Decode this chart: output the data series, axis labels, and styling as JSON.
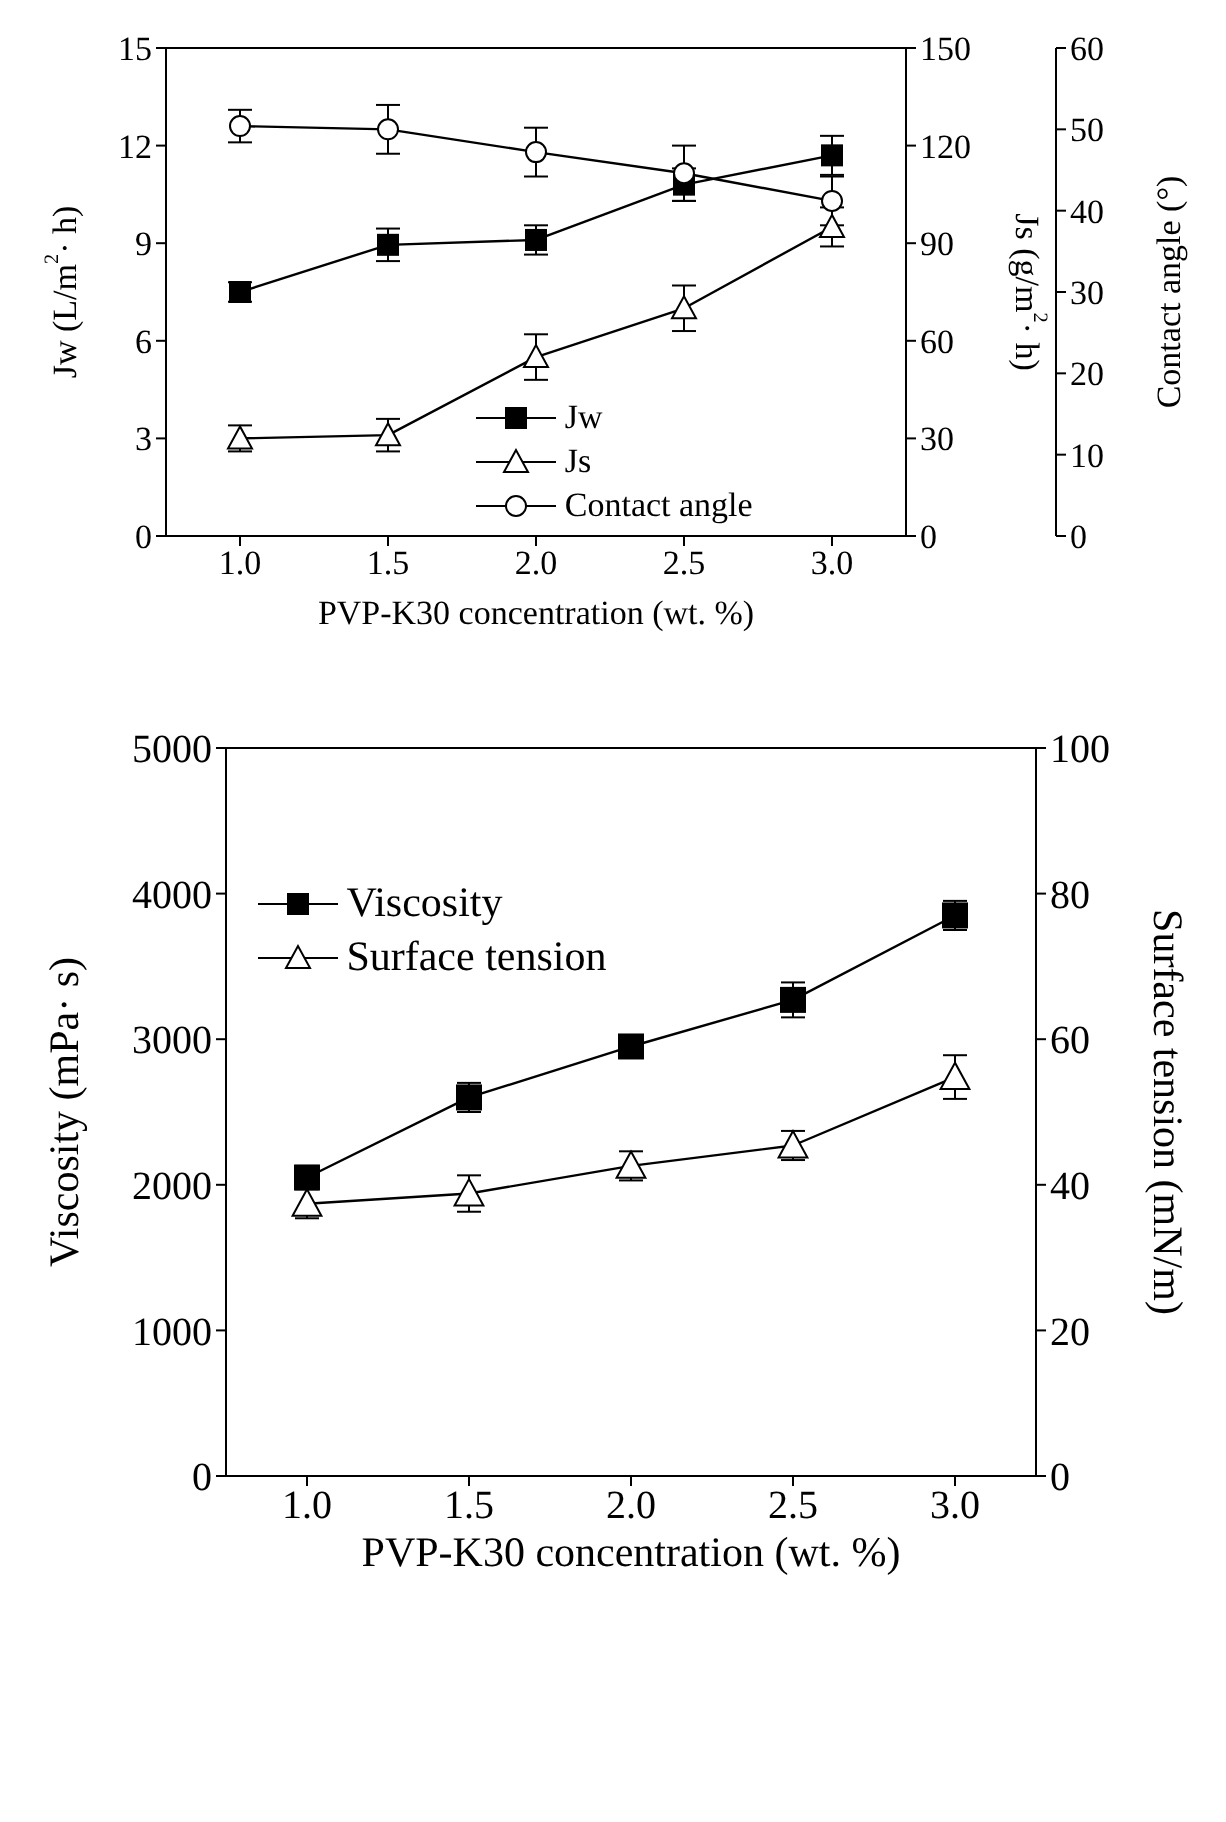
{
  "chart_data": [
    {
      "type": "line",
      "xlabel": "PVP-K30 concentration (wt. %)",
      "ylabel": "Jw (L/m$^{2}$· h)",
      "y2label": "Js (g/m$^{2}$· h)",
      "y3label": "Contact angle (°)",
      "x": [
        1.0,
        1.5,
        2.0,
        2.5,
        3.0
      ],
      "xlim": [
        0.75,
        3.25
      ],
      "xticks": [
        {
          "value": 1,
          "label": "1.0"
        },
        {
          "value": 1.5,
          "label": "1.5"
        },
        {
          "value": 2,
          "label": "2.0"
        },
        {
          "value": 2.5,
          "label": "2.5"
        },
        {
          "value": 3,
          "label": "3.0"
        }
      ],
      "ylim": [
        0,
        15
      ],
      "yticks": [
        0,
        3,
        6,
        9,
        12,
        15
      ],
      "y2lim": [
        0,
        150
      ],
      "y2ticks": [
        0,
        30,
        60,
        90,
        120,
        150
      ],
      "y3lim": [
        0,
        60
      ],
      "y3ticks": [
        0,
        10,
        20,
        30,
        40,
        50,
        60
      ],
      "legend": "bottom",
      "grid": false,
      "line_style": "solid",
      "series": [
        {
          "name": "Jw",
          "color": "#000000",
          "marker": "square",
          "axis": "y",
          "values": [
            7.5,
            8.95,
            9.1,
            10.8,
            11.7
          ],
          "errors": [
            0.3,
            0.5,
            0.45,
            0.5,
            0.6
          ]
        },
        {
          "name": "Js",
          "color": "#000000",
          "marker": "triangle",
          "axis": "y2",
          "values": [
            30,
            31,
            55,
            70,
            95
          ],
          "errors": [
            4,
            5,
            7,
            7,
            6
          ]
        },
        {
          "name": "Contact angle",
          "color": "#000000",
          "marker": "circle",
          "axis": "y3",
          "values": [
            50.4,
            50,
            47.2,
            44.6,
            41.2
          ],
          "errors": [
            2,
            3,
            3,
            3.4,
            3
          ]
        }
      ]
    },
    {
      "type": "line",
      "xlabel": "PVP-K30 concentration (wt. %)",
      "ylabel": "Viscosity (mPa· s)",
      "y2label": "Surface tension (mN/m)",
      "x": [
        1.0,
        1.5,
        2.0,
        2.5,
        3.0
      ],
      "xlim": [
        0.75,
        3.25
      ],
      "xticks": [
        {
          "value": 1,
          "label": "1.0"
        },
        {
          "value": 1.5,
          "label": "1.5"
        },
        {
          "value": 2,
          "label": "2.0"
        },
        {
          "value": 2.5,
          "label": "2.5"
        },
        {
          "value": 3,
          "label": "3.0"
        }
      ],
      "ylim": [
        0,
        5000
      ],
      "yticks": [
        0,
        1000,
        2000,
        3000,
        4000,
        5000
      ],
      "y2lim": [
        0,
        100
      ],
      "y2ticks": [
        0,
        20,
        40,
        60,
        80,
        100
      ],
      "legend": "top left",
      "grid": false,
      "line_style": "solid",
      "series": [
        {
          "name": "Viscosity",
          "color": "#000000",
          "marker": "square",
          "axis": "y",
          "values": [
            2050,
            2600,
            2950,
            3270,
            3850
          ],
          "errors": [
            80,
            100,
            60,
            120,
            100
          ]
        },
        {
          "name": "Surface tension",
          "color": "#000000",
          "marker": "triangle",
          "axis": "y2",
          "values": [
            37.4,
            38.8,
            42.6,
            45.4,
            54.8
          ],
          "errors": [
            2,
            2.5,
            2,
            2,
            3
          ]
        }
      ]
    }
  ]
}
